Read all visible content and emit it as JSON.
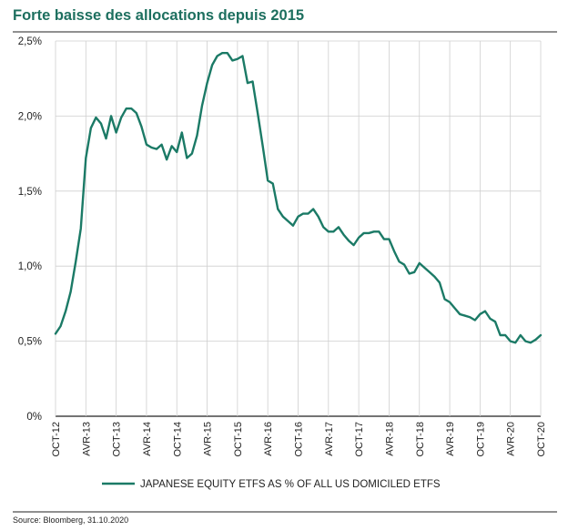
{
  "title": "Forte baisse des allocations depuis 2015",
  "source": "Source: Bloomberg, 31.10.2020",
  "colors": {
    "title": "#1d6f5f",
    "line": "#1b7a66",
    "grid": "#cfcfcf",
    "text": "#222222",
    "rule": "#222222"
  },
  "chart_data": {
    "type": "line",
    "title": "Forte baisse des allocations depuis 2015",
    "xlabel": "",
    "ylabel": "",
    "ylim": [
      0,
      2.5
    ],
    "yticks": [
      0,
      0.5,
      1.0,
      1.5,
      2.0,
      2.5
    ],
    "ytick_labels": [
      "0%",
      "0,5%",
      "1,0%",
      "1,5%",
      "2,0%",
      "2,5%"
    ],
    "xlim": [
      0,
      96
    ],
    "xticks": [
      0,
      6,
      12,
      18,
      24,
      30,
      36,
      42,
      48,
      54,
      60,
      66,
      72,
      78,
      84,
      90,
      96
    ],
    "xtick_labels": [
      "OCT-12",
      "AVR-13",
      "OCT-13",
      "AVR-14",
      "OCT-14",
      "AVR-15",
      "OCT-15",
      "AVR-16",
      "OCT-16",
      "AVR-17",
      "OCT-17",
      "AVR-18",
      "OCT-18",
      "AVR-19",
      "OCT-19",
      "AVR-20",
      "OCT-20"
    ],
    "grid": true,
    "legend_position": "bottom",
    "series": [
      {
        "name": "JAPANESE EQUITY ETFS AS % OF ALL US DOMICILED ETFS",
        "color": "#1b7a66",
        "x": [
          0,
          1,
          2,
          3,
          4,
          5,
          6,
          7,
          8,
          9,
          10,
          11,
          12,
          13,
          14,
          15,
          16,
          17,
          18,
          19,
          20,
          21,
          22,
          23,
          24,
          25,
          26,
          27,
          28,
          29,
          30,
          31,
          32,
          33,
          34,
          35,
          36,
          37,
          38,
          39,
          40,
          41,
          42,
          43,
          44,
          45,
          46,
          47,
          48,
          49,
          50,
          51,
          52,
          53,
          54,
          55,
          56,
          57,
          58,
          59,
          60,
          61,
          62,
          63,
          64,
          65,
          66,
          67,
          68,
          69,
          70,
          71,
          72,
          73,
          74,
          75,
          76,
          77,
          78,
          79,
          80,
          81,
          82,
          83,
          84,
          85,
          86,
          87,
          88,
          89,
          90,
          91,
          92,
          93,
          94,
          95,
          96
        ],
        "values": [
          0.55,
          0.6,
          0.7,
          0.83,
          1.03,
          1.25,
          1.72,
          1.92,
          1.99,
          1.95,
          1.85,
          2.0,
          1.89,
          1.99,
          2.05,
          2.05,
          2.02,
          1.93,
          1.81,
          1.79,
          1.78,
          1.81,
          1.71,
          1.8,
          1.76,
          1.89,
          1.72,
          1.75,
          1.87,
          2.07,
          2.22,
          2.34,
          2.4,
          2.42,
          2.42,
          2.37,
          2.38,
          2.4,
          2.22,
          2.23,
          2.02,
          1.8,
          1.57,
          1.55,
          1.38,
          1.33,
          1.3,
          1.27,
          1.33,
          1.35,
          1.35,
          1.38,
          1.33,
          1.26,
          1.23,
          1.23,
          1.26,
          1.21,
          1.17,
          1.14,
          1.19,
          1.22,
          1.22,
          1.23,
          1.23,
          1.18,
          1.18,
          1.1,
          1.03,
          1.01,
          0.95,
          0.96,
          1.02,
          0.99,
          0.96,
          0.93,
          0.89,
          0.78,
          0.76,
          0.72,
          0.68,
          0.67,
          0.66,
          0.64,
          0.68,
          0.7,
          0.65,
          0.63,
          0.54,
          0.54,
          0.5,
          0.49,
          0.54,
          0.5,
          0.49,
          0.51,
          0.54
        ]
      }
    ]
  }
}
